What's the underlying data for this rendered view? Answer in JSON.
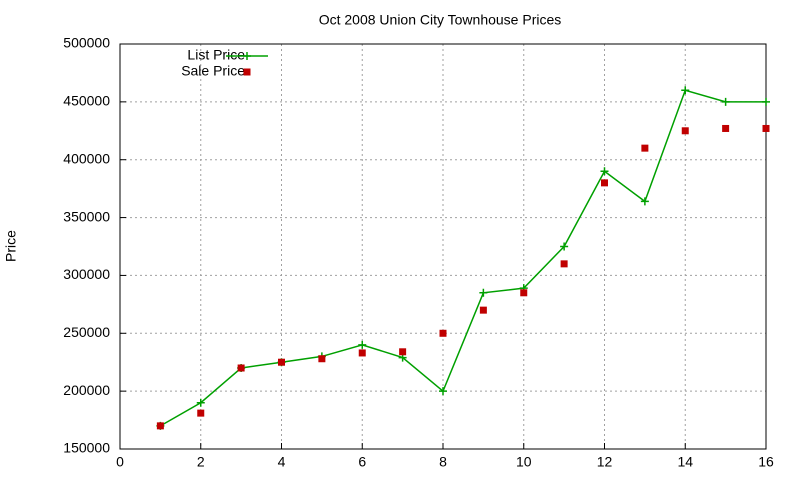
{
  "chart_data": {
    "type": "line",
    "title": "Oct 2008 Union City Townhouse Prices",
    "y_label": "Price",
    "x": [
      1,
      2,
      3,
      4,
      5,
      6,
      7,
      8,
      9,
      10,
      11,
      12,
      13,
      14,
      15,
      16
    ],
    "series": [
      {
        "name": "List Price",
        "color": "#00a000",
        "style": "linespoints",
        "values": [
          170000,
          190000,
          220000,
          225000,
          230000,
          240000,
          229000,
          200000,
          285000,
          289000,
          325000,
          390000,
          364000,
          460000,
          450000,
          450000
        ]
      },
      {
        "name": "Sale Price",
        "color": "#c00000",
        "style": "points",
        "values": [
          170000,
          181000,
          220000,
          225000,
          228000,
          233000,
          234000,
          250000,
          270000,
          285000,
          310000,
          380000,
          410000,
          425000,
          427000,
          427000
        ]
      }
    ],
    "xlim": [
      0,
      16
    ],
    "xticks": [
      0,
      2,
      4,
      6,
      8,
      10,
      12,
      14,
      16
    ],
    "ylim": [
      150000,
      500000
    ],
    "yticks": [
      150000,
      200000,
      250000,
      300000,
      350000,
      400000,
      450000,
      500000
    ],
    "grid": true,
    "legend": "top-left"
  }
}
